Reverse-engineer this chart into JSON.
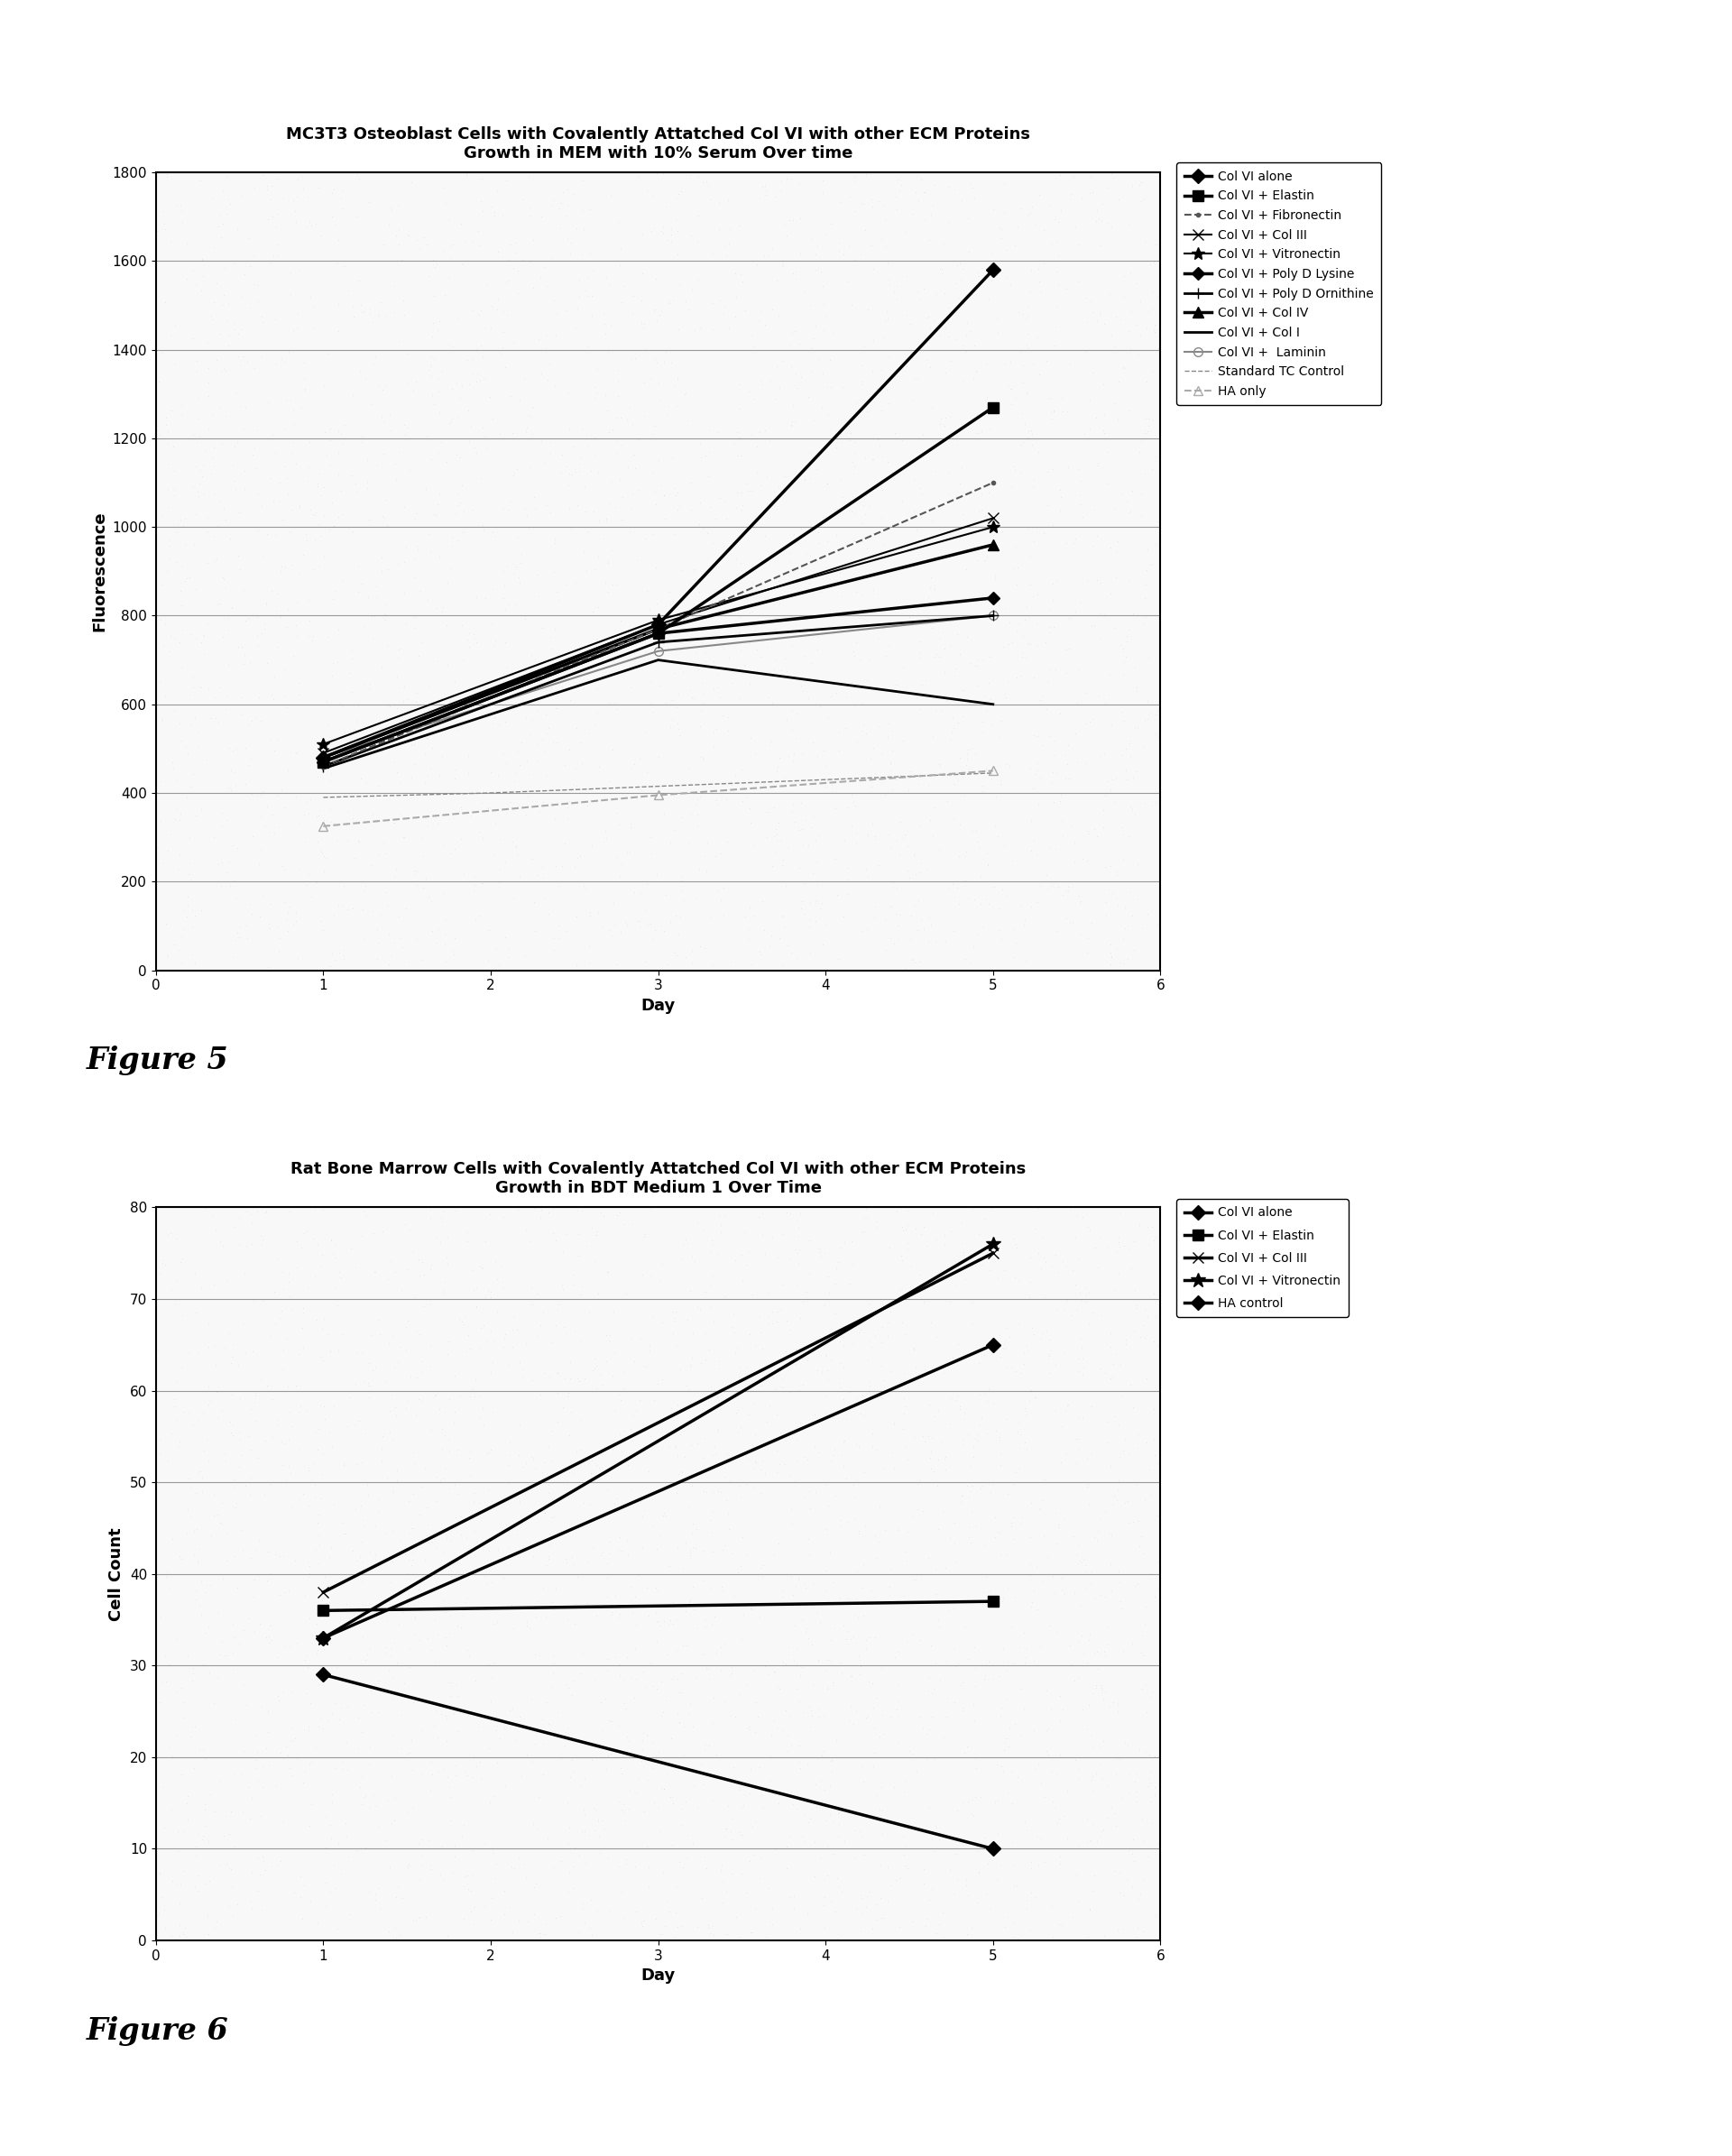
{
  "fig1": {
    "title_line1": "MC3T3 Osteoblast Cells with Covalently Attatched Col VI with other ECM Proteins",
    "title_line2": "Growth in MEM with 10% Serum Over time",
    "xlabel": "Day",
    "ylabel": "Fluorescence",
    "xlim": [
      0,
      6
    ],
    "ylim": [
      0,
      1800
    ],
    "yticks": [
      0,
      200,
      400,
      600,
      800,
      1000,
      1200,
      1400,
      1600,
      1800
    ],
    "xticks": [
      0,
      1,
      2,
      3,
      4,
      5,
      6
    ],
    "series": [
      {
        "label": "Col VI alone",
        "x": [
          1,
          3,
          5
        ],
        "y": [
          480,
          780,
          1580
        ],
        "marker": "D",
        "linestyle": "-",
        "linewidth": 2.5,
        "color": "#000000",
        "markersize": 8,
        "zorder": 10
      },
      {
        "label": "Col VI + Elastin",
        "x": [
          1,
          3,
          5
        ],
        "y": [
          470,
          760,
          1270
        ],
        "marker": "s",
        "linestyle": "-",
        "linewidth": 2.5,
        "color": "#000000",
        "markersize": 8,
        "zorder": 9
      },
      {
        "label": "Col VI + Fibronectin",
        "x": [
          1,
          3,
          5
        ],
        "y": [
          460,
          770,
          1100
        ],
        "marker": ".",
        "linestyle": "--",
        "linewidth": 1.5,
        "color": "#555555",
        "markersize": 6,
        "zorder": 8
      },
      {
        "label": "Col VI + Col III",
        "x": [
          1,
          3,
          5
        ],
        "y": [
          490,
          780,
          1020
        ],
        "marker": "x",
        "linestyle": "-",
        "linewidth": 1.5,
        "color": "#000000",
        "markersize": 8,
        "zorder": 7
      },
      {
        "label": "Col VI + Vitronectin",
        "x": [
          1,
          3,
          5
        ],
        "y": [
          510,
          790,
          1000
        ],
        "marker": "*",
        "linestyle": "-",
        "linewidth": 1.5,
        "color": "#000000",
        "markersize": 10,
        "zorder": 6
      },
      {
        "label": "Col VI + Poly D Lysine",
        "x": [
          1,
          3,
          5
        ],
        "y": [
          470,
          760,
          840
        ],
        "marker": "D",
        "linestyle": "-",
        "linewidth": 2.5,
        "color": "#000000",
        "markersize": 7,
        "zorder": 5
      },
      {
        "label": "Col VI + Poly D Ornithine",
        "x": [
          1,
          3,
          5
        ],
        "y": [
          460,
          740,
          800
        ],
        "marker": "+",
        "linestyle": "-",
        "linewidth": 2.0,
        "color": "#000000",
        "markersize": 9,
        "zorder": 5
      },
      {
        "label": "Col VI + Col IV",
        "x": [
          1,
          3,
          5
        ],
        "y": [
          480,
          770,
          960
        ],
        "marker": "^",
        "linestyle": "-",
        "linewidth": 2.5,
        "color": "#000000",
        "markersize": 8,
        "zorder": 5
      },
      {
        "label": "Col VI + Col I",
        "x": [
          1,
          3,
          5
        ],
        "y": [
          455,
          700,
          600
        ],
        "marker": "None",
        "linestyle": "-",
        "linewidth": 2.0,
        "color": "#000000",
        "markersize": 0,
        "zorder": 5
      },
      {
        "label": "Col VI +  Laminin",
        "x": [
          1,
          3,
          5
        ],
        "y": [
          480,
          720,
          800
        ],
        "marker": "o",
        "linestyle": "-",
        "linewidth": 1.5,
        "color": "#888888",
        "markersize": 7,
        "fillstyle": "none",
        "zorder": 4
      },
      {
        "label": "Standard TC Control",
        "x": [
          1,
          2,
          3,
          4,
          5
        ],
        "y": [
          390,
          400,
          415,
          430,
          445
        ],
        "marker": "None",
        "linestyle": "--",
        "linewidth": 1.0,
        "color": "#888888",
        "markersize": 0,
        "zorder": 3
      },
      {
        "label": "HA only",
        "x": [
          1,
          3,
          5
        ],
        "y": [
          325,
          395,
          450
        ],
        "marker": "^",
        "linestyle": "--",
        "linewidth": 1.5,
        "color": "#aaaaaa",
        "markersize": 7,
        "fillstyle": "none",
        "zorder": 3
      }
    ]
  },
  "fig2": {
    "title_line1": "Rat Bone Marrow Cells with Covalently Attatched Col VI with other ECM Proteins",
    "title_line2": "Growth in BDT Medium 1 Over Time",
    "xlabel": "Day",
    "ylabel": "Cell Count",
    "xlim": [
      0,
      6
    ],
    "ylim": [
      0,
      80
    ],
    "yticks": [
      0,
      10,
      20,
      30,
      40,
      50,
      60,
      70,
      80
    ],
    "xticks": [
      0,
      1,
      2,
      3,
      4,
      5,
      6
    ],
    "series": [
      {
        "label": "Col VI alone",
        "x": [
          1,
          5
        ],
        "y": [
          33,
          65
        ],
        "marker": "D",
        "linestyle": "-",
        "linewidth": 2.5,
        "color": "#000000",
        "markersize": 8
      },
      {
        "label": "Col VI + Elastin",
        "x": [
          1,
          5
        ],
        "y": [
          36,
          37
        ],
        "marker": "s",
        "linestyle": "-",
        "linewidth": 2.5,
        "color": "#000000",
        "markersize": 8
      },
      {
        "label": "Col VI + Col III",
        "x": [
          1,
          5
        ],
        "y": [
          38,
          75
        ],
        "marker": "x",
        "linestyle": "-",
        "linewidth": 2.5,
        "color": "#000000",
        "markersize": 9
      },
      {
        "label": "Col VI + Vitronectin",
        "x": [
          1,
          5
        ],
        "y": [
          33,
          76
        ],
        "marker": "*",
        "linestyle": "-",
        "linewidth": 2.5,
        "color": "#000000",
        "markersize": 12
      },
      {
        "label": "HA control",
        "x": [
          1,
          5
        ],
        "y": [
          29,
          10
        ],
        "marker": "D",
        "linestyle": "-",
        "linewidth": 2.5,
        "color": "#000000",
        "markersize": 8
      }
    ]
  },
  "figure5_label": "Figure 5",
  "figure6_label": "Figure 6",
  "bg_color": "#ffffff"
}
